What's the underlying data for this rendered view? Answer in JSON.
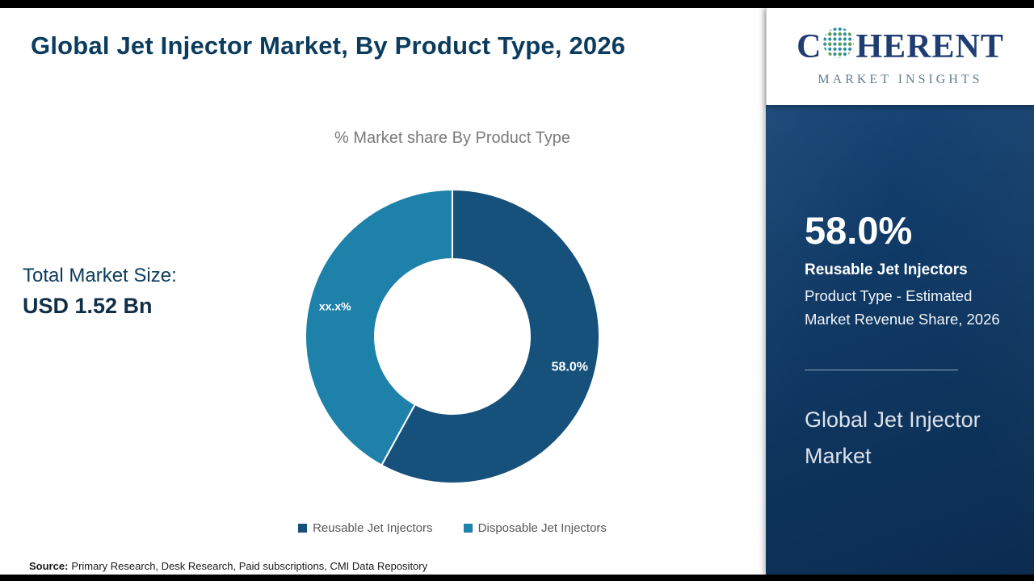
{
  "header": {
    "title": "Global Jet Injector Market, By Product Type, 2026"
  },
  "chart_data": {
    "type": "pie",
    "subtype": "donut",
    "title": "% Market share By Product Type",
    "categories": [
      "Reusable Jet Injectors",
      "Disposable Jet Injectors"
    ],
    "values": [
      58.0,
      42.0
    ],
    "slice_labels": [
      "58.0%",
      "xx.x%"
    ],
    "colors": [
      "#15517b",
      "#1e81a9"
    ],
    "start_angle_deg": 0,
    "donut_hole_ratio": 0.53,
    "legend_position": "bottom"
  },
  "market_size": {
    "label": "Total Market Size:",
    "value": "USD 1.52 Bn"
  },
  "source": {
    "label": "Source:",
    "text": "Primary Research, Desk Research, Paid subscriptions, CMI Data Repository"
  },
  "sidebar": {
    "logo": {
      "c": "C",
      "rest": "HERENT",
      "tagline": "MARKET INSIGHTS"
    },
    "stat_value": "58.0%",
    "stat_title": "Reusable Jet Injectors",
    "stat_desc": "Product Type - Estimated Market Revenue Share, 2026",
    "market_title": "Global Jet Injector Market"
  },
  "colors": {
    "title_text": "#0b3c5d",
    "sidebar_navy": "#103a66",
    "slice_reusable": "#15517b",
    "slice_disposable": "#1e81a9"
  }
}
